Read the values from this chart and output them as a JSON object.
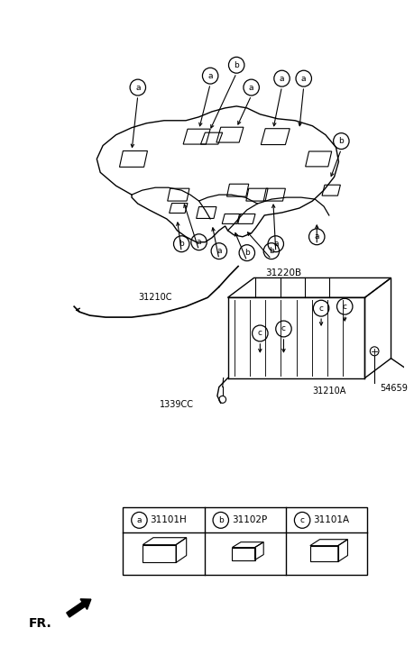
{
  "bg_color": "#ffffff",
  "line_color": "#000000",
  "legend_items": [
    {
      "label": "a",
      "code": "31101H"
    },
    {
      "label": "b",
      "code": "31102P"
    },
    {
      "label": "c",
      "code": "31101A"
    }
  ]
}
